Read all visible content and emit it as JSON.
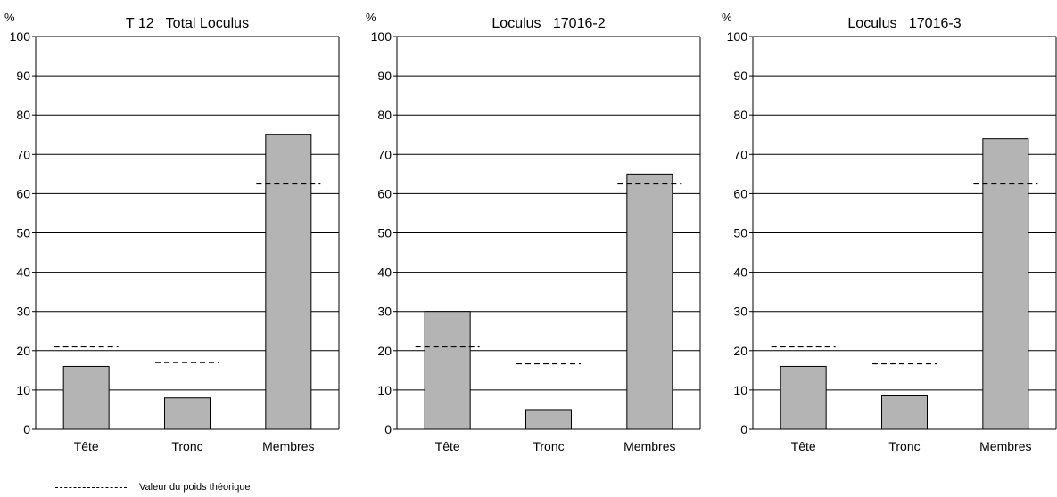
{
  "legend": {
    "label": "Valeur du poids théorique"
  },
  "colors": {
    "bar_fill": "#b4b4b4",
    "bar_stroke": "#000000",
    "grid": "#000000"
  },
  "chart_data": [
    {
      "type": "bar",
      "title": "T 12   Total Loculus",
      "ylabel": "%",
      "ylim": [
        0,
        100
      ],
      "yticks": [
        0,
        10,
        20,
        30,
        40,
        50,
        60,
        70,
        80,
        90,
        100
      ],
      "grid": true,
      "categories": [
        "Tête",
        "Tronc",
        "Membres"
      ],
      "values": [
        16,
        8,
        75
      ],
      "theoretical": [
        21,
        17,
        62.5
      ]
    },
    {
      "type": "bar",
      "title": "Loculus   17016-2",
      "ylabel": "%",
      "ylim": [
        0,
        100
      ],
      "yticks": [
        0,
        10,
        20,
        30,
        40,
        50,
        60,
        70,
        80,
        90,
        100
      ],
      "grid": true,
      "categories": [
        "Tête",
        "Tronc",
        "Membres"
      ],
      "values": [
        30,
        5,
        65
      ],
      "theoretical": [
        21,
        16.7,
        62.5
      ]
    },
    {
      "type": "bar",
      "title": "Loculus   17016-3",
      "ylabel": "%",
      "ylim": [
        0,
        100
      ],
      "yticks": [
        0,
        10,
        20,
        30,
        40,
        50,
        60,
        70,
        80,
        90,
        100
      ],
      "grid": true,
      "categories": [
        "Tête",
        "Tronc",
        "Membres"
      ],
      "values": [
        16,
        8.5,
        74
      ],
      "theoretical": [
        21,
        16.7,
        62.5
      ]
    }
  ]
}
